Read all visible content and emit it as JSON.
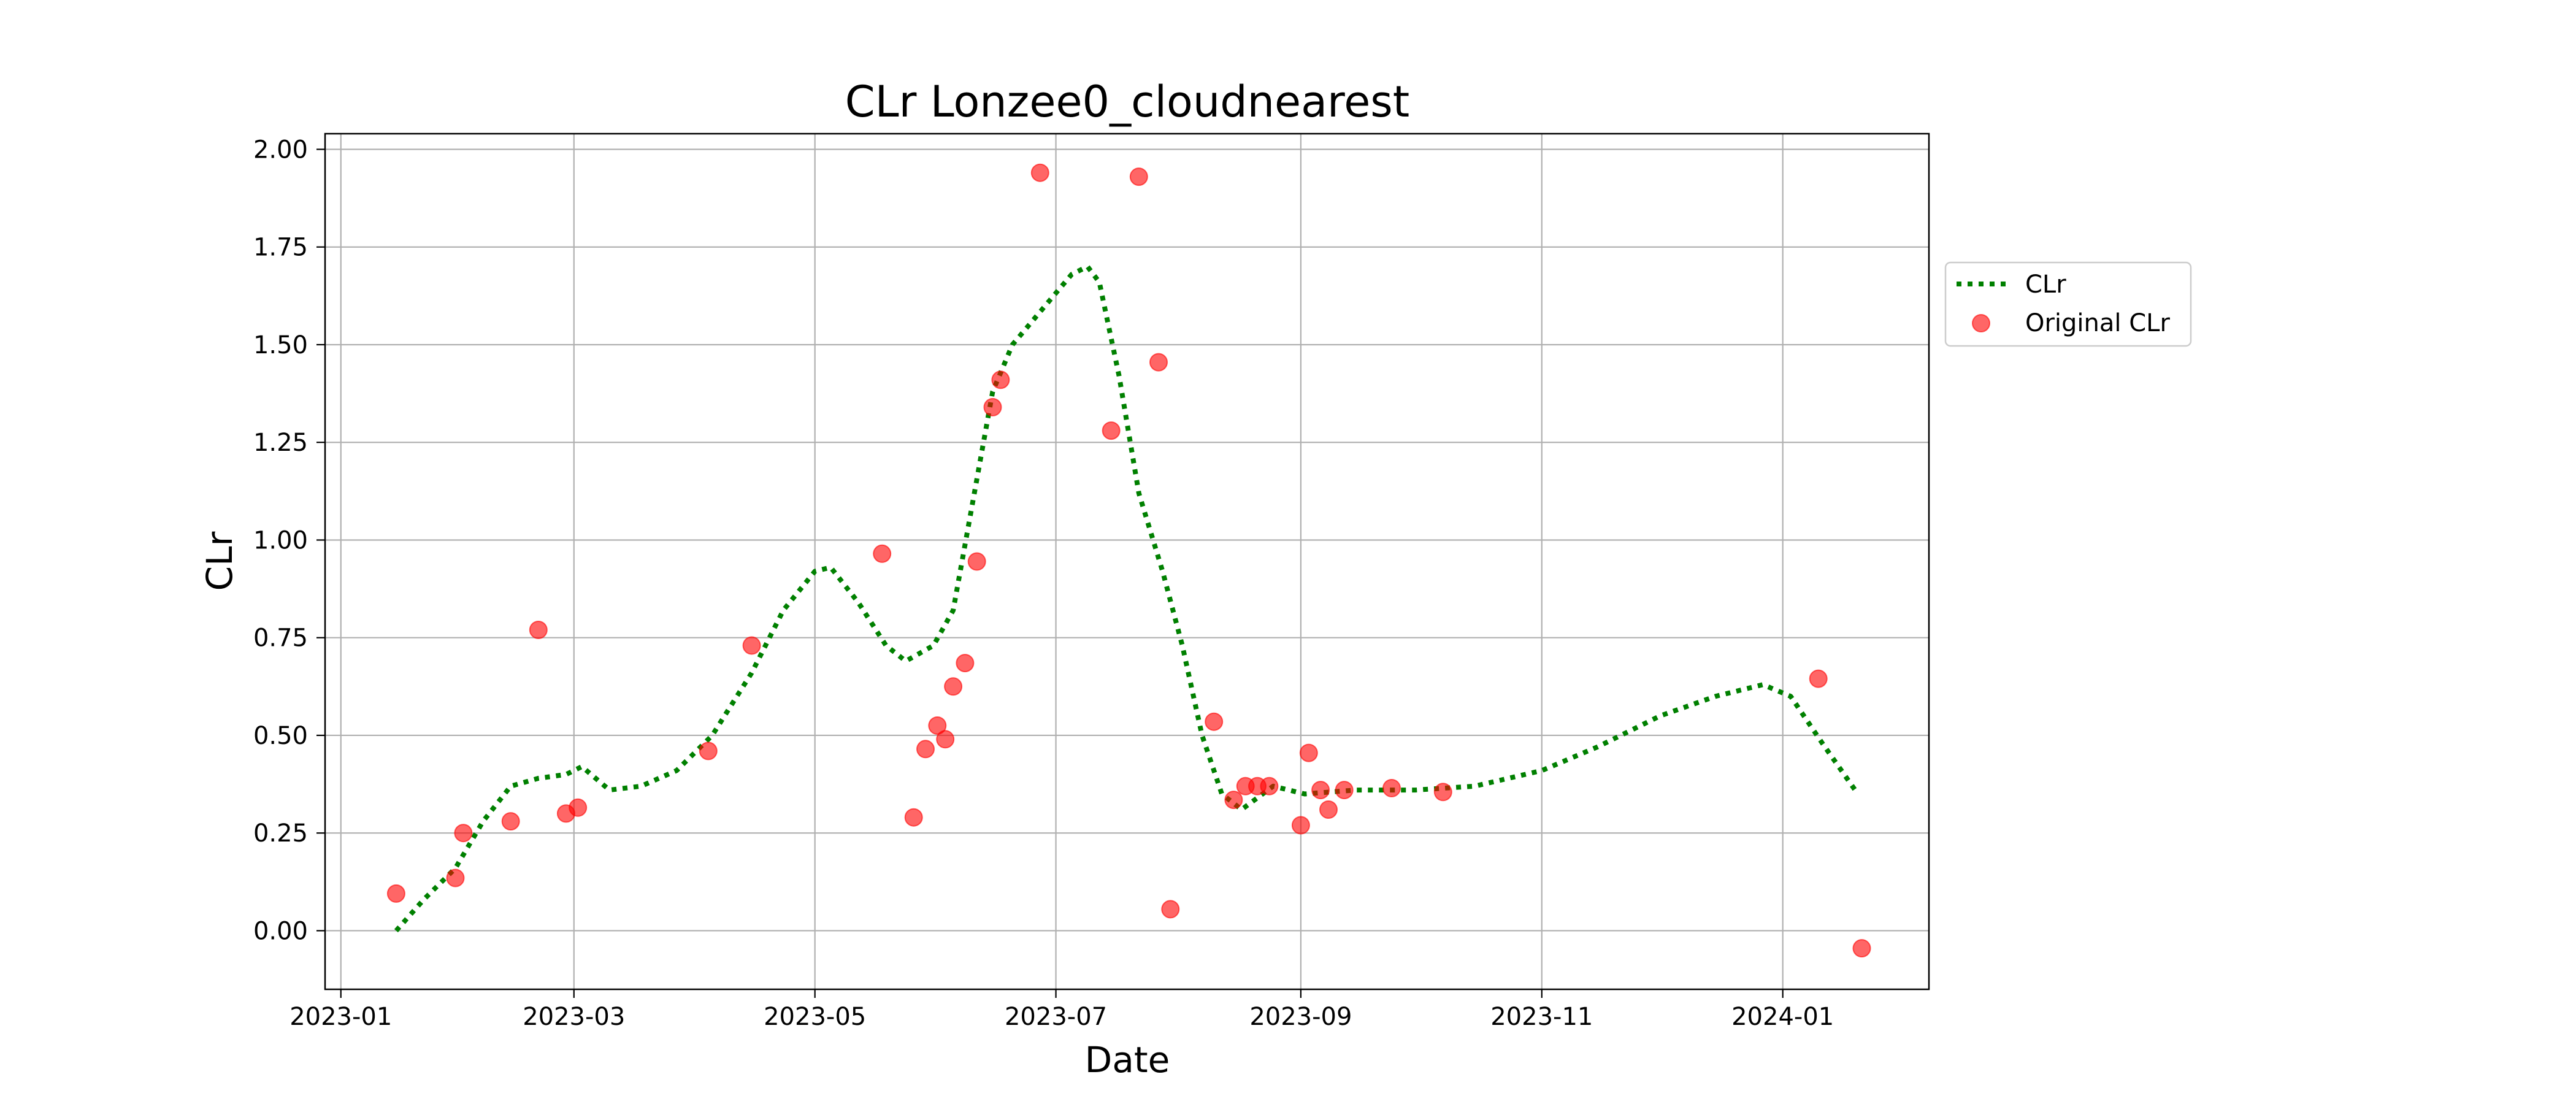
{
  "chart_data": {
    "type": "scatter",
    "title": "CLr Lonzee0_cloudnearest",
    "xlabel": "Date",
    "ylabel": "CLr",
    "xlim": [
      "2022-12-28",
      "2024-02-07"
    ],
    "ylim": [
      -0.15,
      2.04
    ],
    "x_ticks": [
      "2023-01-01",
      "2023-03-01",
      "2023-05-01",
      "2023-07-01",
      "2023-09-01",
      "2023-11-01",
      "2024-01-01"
    ],
    "x_tick_labels": [
      "2023-01",
      "2023-03",
      "2023-05",
      "2023-07",
      "2023-09",
      "2023-11",
      "2024-01"
    ],
    "y_ticks": [
      0.0,
      0.25,
      0.5,
      0.75,
      1.0,
      1.25,
      1.5,
      1.75,
      2.0
    ],
    "y_tick_labels": [
      "0.00",
      "0.25",
      "0.50",
      "0.75",
      "1.00",
      "1.25",
      "1.50",
      "1.75",
      "2.00"
    ],
    "grid": true,
    "legend_position": "right-outside-top",
    "series": [
      {
        "name": "CLr",
        "type": "line",
        "style": "dotted",
        "color": "#008000",
        "points": [
          [
            "2023-01-15",
            0.0
          ],
          [
            "2023-01-22",
            0.08
          ],
          [
            "2023-01-30",
            0.16
          ],
          [
            "2023-02-06",
            0.28
          ],
          [
            "2023-02-13",
            0.37
          ],
          [
            "2023-02-20",
            0.39
          ],
          [
            "2023-02-27",
            0.4
          ],
          [
            "2023-03-03",
            0.42
          ],
          [
            "2023-03-10",
            0.36
          ],
          [
            "2023-03-18",
            0.37
          ],
          [
            "2023-03-27",
            0.41
          ],
          [
            "2023-04-05",
            0.5
          ],
          [
            "2023-04-15",
            0.66
          ],
          [
            "2023-04-23",
            0.82
          ],
          [
            "2023-05-01",
            0.92
          ],
          [
            "2023-05-05",
            0.93
          ],
          [
            "2023-05-12",
            0.84
          ],
          [
            "2023-05-19",
            0.73
          ],
          [
            "2023-05-24",
            0.69
          ],
          [
            "2023-05-31",
            0.73
          ],
          [
            "2023-06-05",
            0.82
          ],
          [
            "2023-06-10",
            1.1
          ],
          [
            "2023-06-15",
            1.38
          ],
          [
            "2023-06-20",
            1.5
          ],
          [
            "2023-06-25",
            1.56
          ],
          [
            "2023-06-30",
            1.62
          ],
          [
            "2023-07-05",
            1.68
          ],
          [
            "2023-07-09",
            1.7
          ],
          [
            "2023-07-12",
            1.66
          ],
          [
            "2023-07-17",
            1.42
          ],
          [
            "2023-07-22",
            1.12
          ],
          [
            "2023-07-28",
            0.92
          ],
          [
            "2023-08-02",
            0.73
          ],
          [
            "2023-08-07",
            0.5
          ],
          [
            "2023-08-12",
            0.35
          ],
          [
            "2023-08-17",
            0.31
          ],
          [
            "2023-08-25",
            0.37
          ],
          [
            "2023-09-02",
            0.35
          ],
          [
            "2023-09-15",
            0.36
          ],
          [
            "2023-09-30",
            0.36
          ],
          [
            "2023-10-15",
            0.37
          ],
          [
            "2023-11-01",
            0.41
          ],
          [
            "2023-11-15",
            0.47
          ],
          [
            "2023-12-01",
            0.55
          ],
          [
            "2023-12-15",
            0.6
          ],
          [
            "2023-12-27",
            0.63
          ],
          [
            "2024-01-03",
            0.6
          ],
          [
            "2024-01-11",
            0.48
          ],
          [
            "2024-01-20",
            0.35
          ]
        ]
      },
      {
        "name": "Original CLr",
        "type": "scatter",
        "color": "#ff0000",
        "points": [
          [
            "2023-01-15",
            0.095
          ],
          [
            "2023-01-30",
            0.135
          ],
          [
            "2023-02-01",
            0.25
          ],
          [
            "2023-02-13",
            0.28
          ],
          [
            "2023-02-20",
            0.77
          ],
          [
            "2023-02-27",
            0.3
          ],
          [
            "2023-03-02",
            0.315
          ],
          [
            "2023-04-04",
            0.46
          ],
          [
            "2023-04-15",
            0.73
          ],
          [
            "2023-05-18",
            0.965
          ],
          [
            "2023-05-26",
            0.29
          ],
          [
            "2023-05-29",
            0.465
          ],
          [
            "2023-06-01",
            0.525
          ],
          [
            "2023-06-03",
            0.49
          ],
          [
            "2023-06-05",
            0.625
          ],
          [
            "2023-06-08",
            0.685
          ],
          [
            "2023-06-11",
            0.945
          ],
          [
            "2023-06-15",
            1.34
          ],
          [
            "2023-06-17",
            1.41
          ],
          [
            "2023-06-27",
            1.94
          ],
          [
            "2023-07-15",
            1.28
          ],
          [
            "2023-07-22",
            1.93
          ],
          [
            "2023-07-27",
            1.455
          ],
          [
            "2023-07-30",
            0.055
          ],
          [
            "2023-08-10",
            0.535
          ],
          [
            "2023-08-15",
            0.335
          ],
          [
            "2023-08-18",
            0.37
          ],
          [
            "2023-08-21",
            0.37
          ],
          [
            "2023-08-24",
            0.37
          ],
          [
            "2023-09-01",
            0.27
          ],
          [
            "2023-09-03",
            0.455
          ],
          [
            "2023-09-06",
            0.36
          ],
          [
            "2023-09-08",
            0.31
          ],
          [
            "2023-09-12",
            0.36
          ],
          [
            "2023-09-24",
            0.365
          ],
          [
            "2023-10-07",
            0.355
          ],
          [
            "2024-01-10",
            0.645
          ],
          [
            "2024-01-21",
            -0.045
          ]
        ]
      }
    ]
  }
}
